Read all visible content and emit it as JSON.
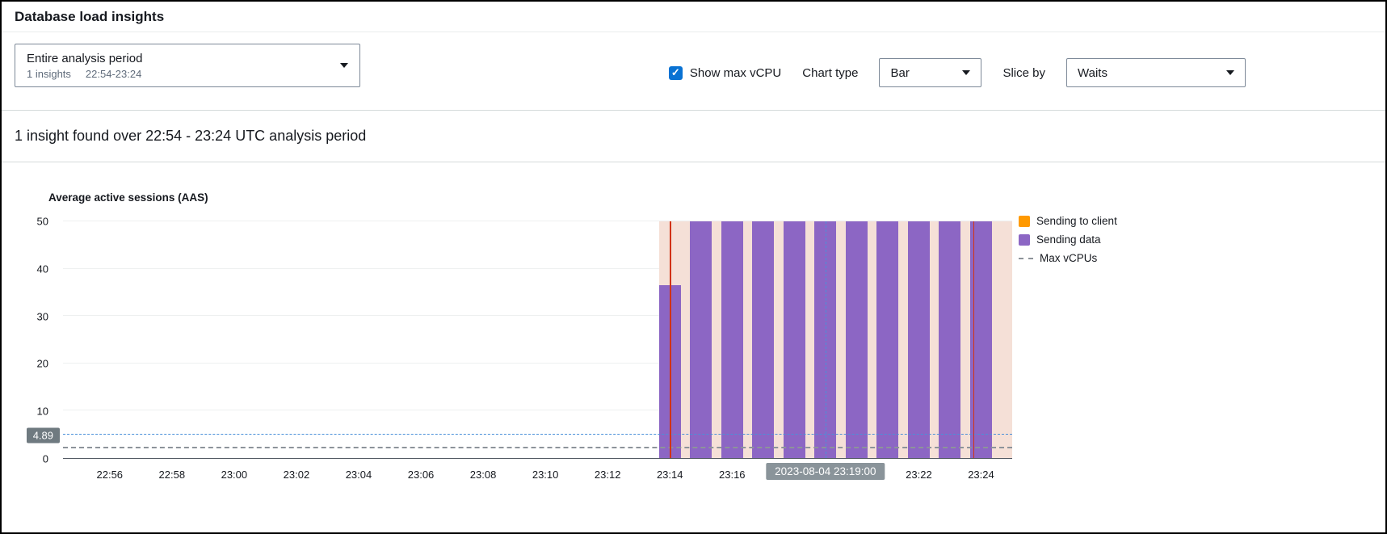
{
  "header": {
    "title": "Database load insights"
  },
  "filters": {
    "period_dropdown": {
      "label": "Entire analysis period",
      "insights_count": "1 insights",
      "time_range": "22:54-23:24"
    },
    "show_max_vcpu": {
      "label": "Show max vCPU",
      "checked": true
    },
    "chart_type": {
      "label": "Chart type",
      "value": "Bar"
    },
    "slice_by": {
      "label": "Slice by",
      "value": "Waits"
    }
  },
  "summary": {
    "text": "1 insight found over 22:54 - 23:24 UTC analysis period"
  },
  "colors": {
    "accent_blue": "#0972d3",
    "bar_purple": "#8c66c4",
    "legend_orange": "#ff9900",
    "insight_band": "#f5e0d7",
    "insight_line_red": "#d13212",
    "aas_line_blue": "#4a90d9",
    "max_vcpu_gray": "#8d939a",
    "badge_gray": "#6f7a80",
    "tooltip_gray": "#8a949a",
    "gridline": "#eef0f0"
  },
  "chart_data": {
    "type": "bar",
    "title": "Average active sessions (AAS)",
    "xlabel": "",
    "ylabel": "Average active sessions (AAS)",
    "ylim": [
      0,
      50
    ],
    "yticks": [
      0,
      10,
      20,
      30,
      40,
      50
    ],
    "x_domain": [
      "22:54:30",
      "23:25:00"
    ],
    "xtick_labels": [
      "22:56",
      "22:58",
      "23:00",
      "23:02",
      "23:04",
      "23:06",
      "23:08",
      "23:10",
      "23:12",
      "23:14",
      "23:16",
      "23:18",
      "23:20",
      "23:22",
      "23:24"
    ],
    "bar_width_minutes": 0.7,
    "grid": true,
    "legend_position": "top-right",
    "series": [
      {
        "name": "Sending to client",
        "color": "#ff9900",
        "x": [],
        "values": []
      },
      {
        "name": "Sending data",
        "color": "#8c66c4",
        "x": [
          "23:14",
          "23:15",
          "23:16",
          "23:17",
          "23:18",
          "23:19",
          "23:20",
          "23:21",
          "23:22",
          "23:23",
          "23:24"
        ],
        "values": [
          36.5,
          50,
          50,
          50,
          50,
          50,
          50,
          50,
          50,
          50,
          50
        ]
      }
    ],
    "legend": [
      {
        "label": "Sending to client",
        "swatch": "box",
        "color": "#ff9900"
      },
      {
        "label": "Sending data",
        "swatch": "box",
        "color": "#8c66c4"
      },
      {
        "label": "Max vCPUs",
        "swatch": "dashed-line",
        "color": "#8d939a"
      }
    ],
    "max_vcpus_line": {
      "value": 2
    },
    "aas_marker": {
      "value": 4.89,
      "label": "4.89"
    },
    "crosshair": {
      "x": "23:19:00",
      "label": "2023-08-04 23:19:00"
    },
    "insight_region": {
      "start": "23:13:40",
      "end": "23:25:00"
    },
    "insight_boundaries": [
      "23:14:00",
      "23:23:45"
    ]
  }
}
